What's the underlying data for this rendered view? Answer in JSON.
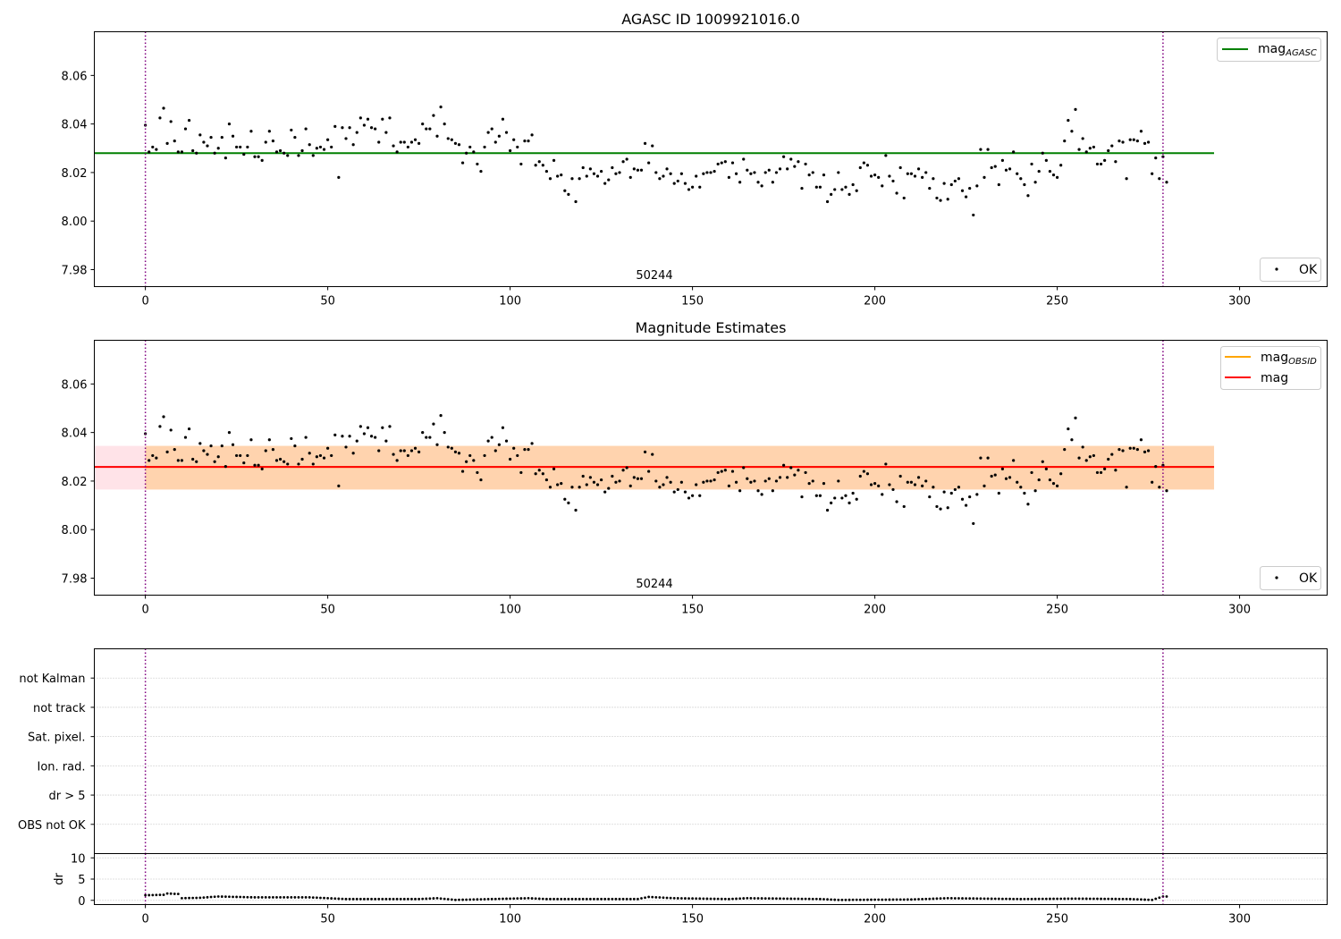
{
  "chart_data": [
    {
      "type": "scatter",
      "title": "AGASC ID 1009921016.0",
      "xlim": [
        -14,
        324
      ],
      "ylim": [
        7.973,
        8.078
      ],
      "xticks": [
        0,
        50,
        100,
        150,
        200,
        250,
        300
      ],
      "yticks": [
        7.98,
        8.0,
        8.02,
        8.04,
        8.06
      ],
      "ytick_labels": [
        "7.98",
        "8.00",
        "8.02",
        "8.04",
        "8.06"
      ],
      "vlines": [
        0,
        279
      ],
      "annotation": "50244",
      "hlines": [
        {
          "name_main": "mag",
          "name_sub": "AGASC",
          "y": 8.028,
          "x_end": 293,
          "color": "#008000"
        }
      ],
      "scatter_legend": "OK",
      "legend_loc_lines": "upper right",
      "legend_loc_points": "lower right",
      "series": [
        {
          "name": "OK",
          "source": "mag_samples"
        }
      ]
    },
    {
      "type": "scatter",
      "title": "Magnitude Estimates",
      "xlim": [
        -14,
        324
      ],
      "ylim": [
        7.973,
        8.078
      ],
      "xticks": [
        0,
        50,
        100,
        150,
        200,
        250,
        300
      ],
      "yticks": [
        7.98,
        8.0,
        8.02,
        8.04,
        8.06
      ],
      "ytick_labels": [
        "7.98",
        "8.00",
        "8.02",
        "8.04",
        "8.06"
      ],
      "vlines": [
        0,
        279
      ],
      "annotation": "50244",
      "bands": [
        {
          "x0": -14,
          "x1": 293,
          "y0": 8.0165,
          "y1": 8.0345,
          "color": "#ffc0cb",
          "opacity": 0.45
        },
        {
          "x0": 0,
          "x1": 293,
          "y0": 8.0165,
          "y1": 8.0345,
          "color": "#ffa500",
          "opacity": 0.25
        }
      ],
      "hlines": [
        {
          "name_main": "mag",
          "name_sub": "OBSID",
          "y": 8.0258,
          "x_start": 0,
          "x_end": 293,
          "color": "#ffa500"
        },
        {
          "name_main": "mag",
          "name_sub": "",
          "y": 8.0258,
          "x_start": -14,
          "x_end": 293,
          "color": "#ff0000"
        }
      ],
      "scatter_legend": "OK",
      "legend_loc_lines": "upper right",
      "legend_loc_points": "lower right",
      "series": [
        {
          "name": "OK",
          "source": "mag_samples"
        }
      ]
    },
    {
      "type": "table",
      "xlim": [
        -14,
        324
      ],
      "categories": [
        "not Kalman",
        "not track",
        "Sat. pixel.",
        "Ion. rad.",
        "dr > 5",
        "OBS not OK"
      ],
      "vlines": [
        0,
        279
      ],
      "grid": true
    },
    {
      "type": "scatter",
      "ylabel": "dr",
      "xlim": [
        -14,
        324
      ],
      "ylim": [
        -1,
        11
      ],
      "xticks": [
        0,
        50,
        100,
        150,
        200,
        250,
        300
      ],
      "yticks": [
        0,
        5,
        10
      ],
      "ytick_labels": [
        "0",
        "5",
        "10"
      ],
      "vlines": [
        0,
        279
      ],
      "grid": true,
      "dr_profile": [
        [
          0,
          1.2
        ],
        [
          5,
          1.3
        ],
        [
          6,
          1.6
        ],
        [
          9,
          1.5
        ],
        [
          10,
          0.5
        ],
        [
          15,
          0.6
        ],
        [
          20,
          0.9
        ],
        [
          25,
          0.8
        ],
        [
          30,
          0.7
        ],
        [
          45,
          0.7
        ],
        [
          50,
          0.5
        ],
        [
          55,
          0.3
        ],
        [
          75,
          0.3
        ],
        [
          80,
          0.5
        ],
        [
          85,
          0.1
        ],
        [
          95,
          0.3
        ],
        [
          105,
          0.5
        ],
        [
          110,
          0.3
        ],
        [
          135,
          0.3
        ],
        [
          138,
          0.8
        ],
        [
          145,
          0.5
        ],
        [
          160,
          0.3
        ],
        [
          165,
          0.5
        ],
        [
          185,
          0.3
        ],
        [
          190,
          0.1
        ],
        [
          210,
          0.2
        ],
        [
          220,
          0.5
        ],
        [
          240,
          0.3
        ],
        [
          255,
          0.4
        ],
        [
          270,
          0.3
        ],
        [
          276,
          0.1
        ],
        [
          279,
          0.9
        ]
      ]
    }
  ],
  "mag_samples": [
    8.0395,
    8.0285,
    8.0305,
    8.0295,
    8.0425,
    8.0465,
    8.032,
    8.041,
    8.033,
    8.0285,
    8.0285,
    8.038,
    8.0415,
    8.029,
    8.028,
    8.0355,
    8.0325,
    8.031,
    8.0345,
    8.028,
    8.03,
    8.0345,
    8.026,
    8.04,
    8.035,
    8.0305,
    8.0305,
    8.0275,
    8.0305,
    8.037,
    8.0265,
    8.0265,
    8.025,
    8.0325,
    8.037,
    8.033,
    8.0285,
    8.029,
    8.028,
    8.027,
    8.0375,
    8.0345,
    8.027,
    8.029,
    8.038,
    8.0315,
    8.027,
    8.03,
    8.0305,
    8.0295,
    8.0335,
    8.0305,
    8.039,
    8.018,
    8.0385,
    8.034,
    8.0385,
    8.0315,
    8.0365,
    8.0425,
    8.0395,
    8.042,
    8.0385,
    8.038,
    8.0325,
    8.042,
    8.0365,
    8.0425,
    8.031,
    8.0285,
    8.0325,
    8.0325,
    8.0305,
    8.0325,
    8.0335,
    8.032,
    8.04,
    8.038,
    8.038,
    8.0435,
    8.035,
    8.047,
    8.04,
    8.034,
    8.0335,
    8.032,
    8.0315,
    8.024,
    8.028,
    8.0305,
    8.0285,
    8.0235,
    8.0205,
    8.0305,
    8.0365,
    8.038,
    8.0325,
    8.035,
    8.042,
    8.0365,
    8.029,
    8.0335,
    8.0305,
    8.0235,
    8.033,
    8.033,
    8.0355,
    8.023,
    8.0245,
    8.023,
    8.0205,
    8.0175,
    8.025,
    8.0185,
    8.019,
    8.0125,
    8.011,
    8.0175,
    8.008,
    8.0175,
    8.022,
    8.0185,
    8.0215,
    8.0195,
    8.0185,
    8.0205,
    8.0155,
    8.017,
    8.022,
    8.0195,
    8.02,
    8.0245,
    8.0255,
    8.018,
    8.0215,
    8.021,
    8.021,
    8.032,
    8.024,
    8.031,
    8.02,
    8.0175,
    8.0185,
    8.0215,
    8.0195,
    8.0155,
    8.0165,
    8.0195,
    8.0155,
    8.013,
    8.014,
    8.0185,
    8.014,
    8.0195,
    8.02,
    8.02,
    8.0205,
    8.0235,
    8.024,
    8.0245,
    8.018,
    8.024,
    8.0195,
    8.016,
    8.0255,
    8.021,
    8.0195,
    8.02,
    8.016,
    8.0145,
    8.02,
    8.021,
    8.016,
    8.02,
    8.0215,
    8.0265,
    8.0215,
    8.0255,
    8.0225,
    8.0245,
    8.0135,
    8.0235,
    8.019,
    8.02,
    8.014,
    8.014,
    8.019,
    8.008,
    8.011,
    8.013,
    8.02,
    8.013,
    8.014,
    8.011,
    8.015,
    8.0125,
    8.022,
    8.024,
    8.023,
    8.0185,
    8.019,
    8.018,
    8.0145,
    8.027,
    8.0185,
    8.0165,
    8.0115,
    8.022,
    8.0095,
    8.0195,
    8.0195,
    8.0185,
    8.0215,
    8.018,
    8.02,
    8.0135,
    8.0175,
    8.0095,
    8.0085,
    8.0155,
    8.009,
    8.015,
    8.0165,
    8.0175,
    8.0125,
    8.01,
    8.0135,
    8.0025,
    8.0145,
    8.0295,
    8.018,
    8.0295,
    8.022,
    8.0225,
    8.015,
    8.025,
    8.021,
    8.0215,
    8.0285,
    8.0195,
    8.0175,
    8.015,
    8.0105,
    8.0235,
    8.016,
    8.0205,
    8.028,
    8.025,
    8.0205,
    8.019,
    8.018,
    8.023,
    8.033,
    8.0415,
    8.037,
    8.046,
    8.0295,
    8.034,
    8.0285,
    8.03,
    8.0305,
    8.0235,
    8.0235,
    8.025,
    8.029,
    8.031,
    8.0245,
    8.033,
    8.0325,
    8.0175,
    8.0335,
    8.0335,
    8.033,
    8.037,
    8.032,
    8.0325,
    8.0195,
    8.026,
    8.0175,
    8.0265,
    8.016
  ]
}
